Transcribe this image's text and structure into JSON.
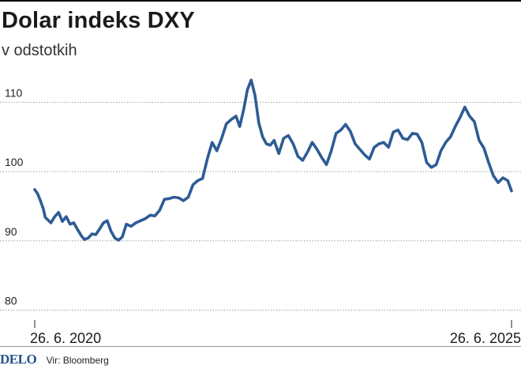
{
  "header": {
    "title": "Dolar indeks DXY",
    "subtitle": "v odstotkih"
  },
  "footer": {
    "logo": "DELO",
    "source": "Vir: Bloomberg"
  },
  "colors": {
    "line": "#2e5c94",
    "grid": "#a0a0a0",
    "logo": "#24528a"
  },
  "chart_data": {
    "type": "line",
    "title": "Dolar indeks DXY",
    "subtitle": "v odstotkih",
    "xlabel": "",
    "ylabel": "",
    "y_ticks": [
      80,
      90,
      100,
      110
    ],
    "ylim": [
      78,
      117
    ],
    "x_ticks": [
      "26. 6. 2020",
      "26. 6. 2025"
    ],
    "xlim": [
      2020.49,
      2025.49
    ],
    "grid": "horizontal dotted",
    "series": [
      {
        "name": "",
        "x": [
          2020.49,
          2020.52,
          2020.55,
          2020.58,
          2020.6,
          2020.63,
          2020.66,
          2020.7,
          2020.74,
          2020.78,
          2020.82,
          2020.86,
          2020.9,
          2020.94,
          2020.98,
          2021.01,
          2021.05,
          2021.09,
          2021.13,
          2021.17,
          2021.21,
          2021.25,
          2021.29,
          2021.33,
          2021.37,
          2021.41,
          2021.45,
          2021.5,
          2021.55,
          2021.6,
          2021.65,
          2021.7,
          2021.75,
          2021.8,
          2021.85,
          2021.9,
          2021.95,
          2022.0,
          2022.05,
          2022.1,
          2022.15,
          2022.2,
          2022.25,
          2022.3,
          2022.35,
          2022.4,
          2022.45,
          2022.5,
          2022.55,
          2022.6,
          2022.64,
          2022.68,
          2022.72,
          2022.76,
          2022.8,
          2022.84,
          2022.88,
          2022.92,
          2022.96,
          2023.0,
          2023.05,
          2023.1,
          2023.15,
          2023.2,
          2023.25,
          2023.3,
          2023.35,
          2023.4,
          2023.45,
          2023.5,
          2023.55,
          2023.6,
          2023.65,
          2023.7,
          2023.75,
          2023.8,
          2023.85,
          2023.9,
          2023.95,
          2024.0,
          2024.05,
          2024.1,
          2024.15,
          2024.2,
          2024.25,
          2024.3,
          2024.35,
          2024.4,
          2024.45,
          2024.5,
          2024.55,
          2024.6,
          2024.65,
          2024.7,
          2024.75,
          2024.8,
          2024.85,
          2024.9,
          2024.95,
          2025.0,
          2025.05,
          2025.1,
          2025.15,
          2025.2,
          2025.25,
          2025.3,
          2025.35,
          2025.4,
          2025.45,
          2025.49
        ],
        "values": [
          97.4,
          96.8,
          95.8,
          94.6,
          93.4,
          93.0,
          92.6,
          93.5,
          94.1,
          92.8,
          93.5,
          92.4,
          92.6,
          91.6,
          90.7,
          90.2,
          90.4,
          91.0,
          90.9,
          91.7,
          92.6,
          92.9,
          91.4,
          90.4,
          90.1,
          90.6,
          92.4,
          92.1,
          92.6,
          92.9,
          93.2,
          93.7,
          93.6,
          94.4,
          96.0,
          96.1,
          96.3,
          96.2,
          95.8,
          96.3,
          98.1,
          98.7,
          99.0,
          101.8,
          104.2,
          103.0,
          104.8,
          106.9,
          107.5,
          108.0,
          106.5,
          108.9,
          111.8,
          113.2,
          111.0,
          107.0,
          105.0,
          104.0,
          103.8,
          104.5,
          102.6,
          104.8,
          105.2,
          104.0,
          102.2,
          101.6,
          102.8,
          104.2,
          103.2,
          102.0,
          101.0,
          103.0,
          105.5,
          106.0,
          106.8,
          105.8,
          104.0,
          103.2,
          102.4,
          101.8,
          103.5,
          104.0,
          104.2,
          103.5,
          105.7,
          106.0,
          104.8,
          104.6,
          105.5,
          105.4,
          104.2,
          101.3,
          100.6,
          101.0,
          103.0,
          104.2,
          105.0,
          106.5,
          107.8,
          109.3,
          108.0,
          107.2,
          104.5,
          103.4,
          101.3,
          99.4,
          98.4,
          99.1,
          98.7,
          97.2
        ]
      }
    ]
  }
}
